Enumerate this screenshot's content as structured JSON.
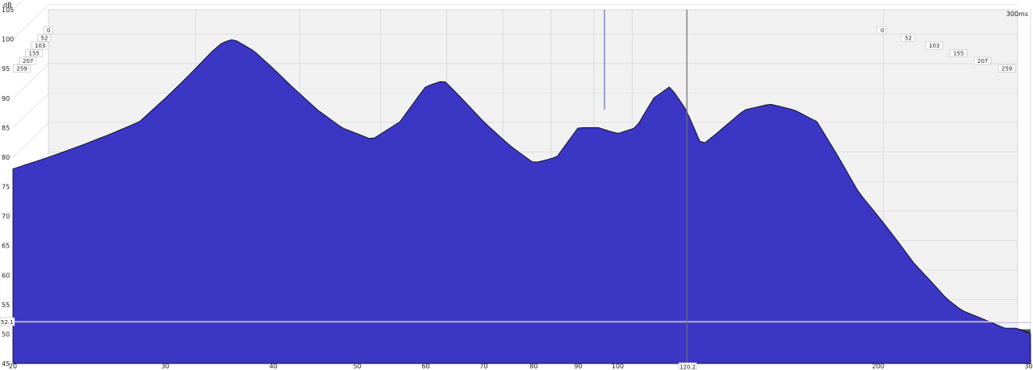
{
  "chart_data": {
    "type": "area",
    "subtype": "waterfall-3d",
    "title": "",
    "xlabel": "",
    "ylabel": "dB",
    "time_unit": "300ms",
    "x_scale": "log",
    "xlim": [
      20,
      300
    ],
    "ylim": [
      45,
      105
    ],
    "x_ticks": [
      "20",
      "30",
      "40",
      "50",
      "60",
      "70",
      "80",
      "90",
      "100",
      "200",
      "300"
    ],
    "y_ticks": [
      "105",
      "100",
      "95",
      "90",
      "85",
      "80",
      "75",
      "70",
      "65",
      "60",
      "55",
      "50",
      "45"
    ],
    "time_labels": [
      "0",
      "52",
      "103",
      "155",
      "207",
      "259"
    ],
    "cursor_x_label": "120.2",
    "cursor_y_label": "52.1",
    "cursor_y_value": 52.1,
    "slice_count": 36,
    "fill_color": "#3b37c4",
    "outline_color": "#000000",
    "front_slice": {
      "x": [
        20,
        22,
        24,
        26,
        28,
        30,
        31,
        32,
        33,
        34,
        35,
        36,
        38,
        40,
        42,
        45,
        48,
        52,
        56,
        60,
        63,
        66,
        70,
        75,
        80,
        85,
        90,
        95,
        100,
        105,
        110,
        115,
        120,
        125,
        130,
        140,
        150,
        160,
        170,
        180,
        190,
        200,
        210,
        220,
        230,
        240,
        250,
        260,
        270,
        280,
        290,
        300
      ],
      "db": [
        78,
        80,
        82,
        84,
        86,
        90,
        92,
        94,
        96,
        98,
        99.5,
        100,
        98,
        95,
        92,
        88,
        85,
        83,
        86,
        92,
        93,
        90,
        86,
        82,
        79,
        80,
        85,
        85,
        84,
        85,
        90,
        92,
        88,
        82,
        84,
        88,
        89,
        88,
        86,
        80,
        74,
        70,
        66,
        62,
        59,
        56,
        54,
        53,
        52,
        51,
        51,
        50
      ]
    }
  }
}
